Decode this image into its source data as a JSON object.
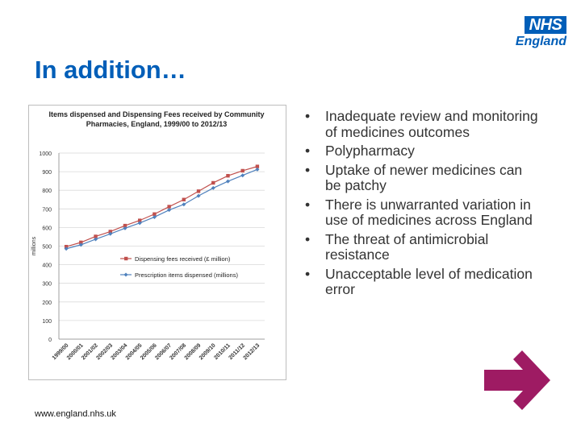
{
  "logo": {
    "nhs": "NHS",
    "region": "England"
  },
  "slide": {
    "title": "In addition…"
  },
  "bullets": [
    "Inadequate review and monitoring of medicines outcomes",
    "Polypharmacy",
    "Uptake of newer medicines can be patchy",
    "There is unwarranted variation in use of medicines across England",
    "The threat of antimicrobial resistance",
    "Unacceptable level of medication error"
  ],
  "bullet_glyph": "•",
  "footer": {
    "url": "www.england.nhs.uk"
  },
  "arrow_icon": {
    "name": "arrow-right-icon",
    "color": "#9e1b63"
  },
  "chart_data": {
    "type": "line",
    "title": "Items dispensed and Dispensing Fees received by Community Pharmacies, England, 1999/00 to 2012/13",
    "ylabel": "millions",
    "xlabel": "",
    "ylim": [
      0,
      1000
    ],
    "yticks": [
      0,
      100,
      200,
      300,
      400,
      500,
      600,
      700,
      800,
      900,
      1000
    ],
    "categories": [
      "1999/00",
      "2000/01",
      "2001/02",
      "2002/03",
      "2003/04",
      "2004/05",
      "2005/06",
      "2006/07",
      "2007/08",
      "2008/09",
      "2009/10",
      "2010/11",
      "2011/12",
      "2012/13"
    ],
    "grid": true,
    "legend": "center-right",
    "series": [
      {
        "name": "Dispensing fees received (£ million)",
        "color": "#c0504d",
        "marker": "square",
        "values": [
          497,
          520,
          552,
          578,
          610,
          638,
          672,
          712,
          750,
          795,
          840,
          878,
          905,
          928
        ]
      },
      {
        "name": "Prescription items dispensed (millions)",
        "color": "#4f81bd",
        "marker": "diamond",
        "values": [
          486,
          507,
          537,
          566,
          596,
          624,
          656,
          694,
          724,
          770,
          812,
          848,
          880,
          912
        ]
      }
    ]
  }
}
